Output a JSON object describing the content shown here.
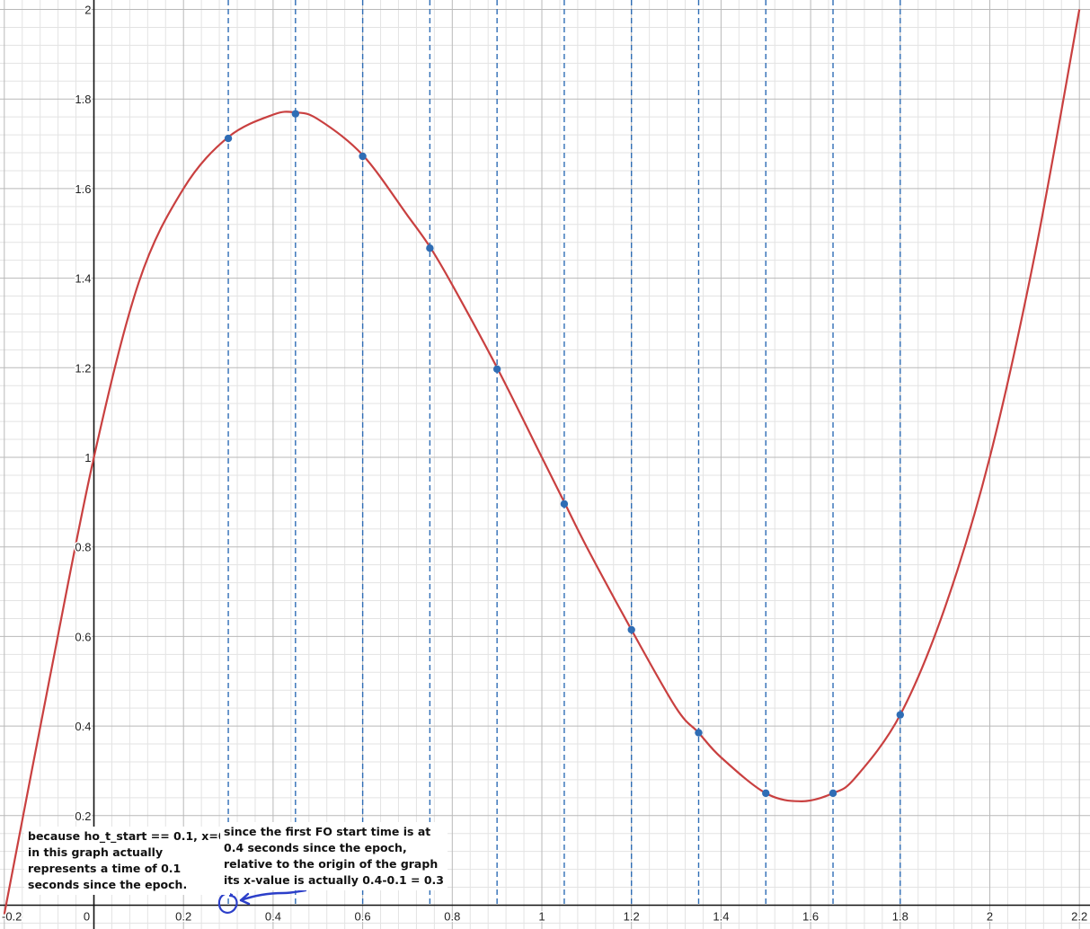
{
  "chart_data": {
    "type": "line",
    "title": "",
    "xlabel": "",
    "ylabel": "",
    "xlim": [
      -0.2,
      2.2
    ],
    "ylim": [
      0,
      2
    ],
    "grid": true,
    "x_tick_labels": [
      "-0.2",
      "0",
      "0.2",
      "0.4",
      "0.6",
      "0.8",
      "1",
      "1.2",
      "1.4",
      "1.6",
      "1.8",
      "2",
      "2.2"
    ],
    "y_tick_labels": [
      "0.2",
      "0.4",
      "0.6",
      "0.8",
      "1",
      "1.2",
      "1.4",
      "1.6",
      "1.8",
      "2"
    ],
    "curve": {
      "color": "#c94040",
      "x": [
        -0.2,
        -0.1,
        0,
        0.1,
        0.2,
        0.3,
        0.4,
        0.45,
        0.5,
        0.6,
        0.7,
        0.75,
        0.8,
        0.9,
        1.0,
        1.05,
        1.1,
        1.2,
        1.3,
        1.35,
        1.4,
        1.5,
        1.58,
        1.65,
        1.7,
        1.8,
        1.9,
        2.0,
        2.1,
        2.2
      ],
      "y": [
        -0.02,
        0.5,
        1.0,
        1.39,
        1.6,
        1.715,
        1.765,
        1.77,
        1.755,
        1.675,
        1.54,
        1.47,
        1.385,
        1.2,
        1.0,
        0.9,
        0.8,
        0.615,
        0.44,
        0.385,
        0.33,
        0.25,
        0.232,
        0.25,
        0.285,
        0.425,
        0.665,
        1.0,
        1.45,
        2.0
      ]
    },
    "points": {
      "color": "#2f6db5",
      "x": [
        0.3,
        0.45,
        0.6,
        0.75,
        0.9,
        1.05,
        1.2,
        1.35,
        1.5,
        1.65,
        1.8
      ],
      "y": [
        1.712,
        1.767,
        1.672,
        1.467,
        1.197,
        0.896,
        0.615,
        0.385,
        0.25,
        0.25,
        0.425
      ]
    },
    "vertical_dashed_lines": {
      "color": "#2f6db5",
      "x": [
        0.3,
        0.45,
        0.6,
        0.75,
        0.9,
        1.05,
        1.2,
        1.35,
        1.5,
        1.65,
        1.8
      ]
    },
    "annotations": [
      "because ho_t_start == 0.1, x=0\nin this graph actually\nrepresents a time of 0.1\nseconds since the epoch.",
      "since the first FO start time is at\n0.4 seconds since the epoch,\nrelative to the origin of the graph\nits x-value is actually 0.4-0.1 = 0.3"
    ],
    "handwritten_mark_color": "#2c3fc9"
  }
}
